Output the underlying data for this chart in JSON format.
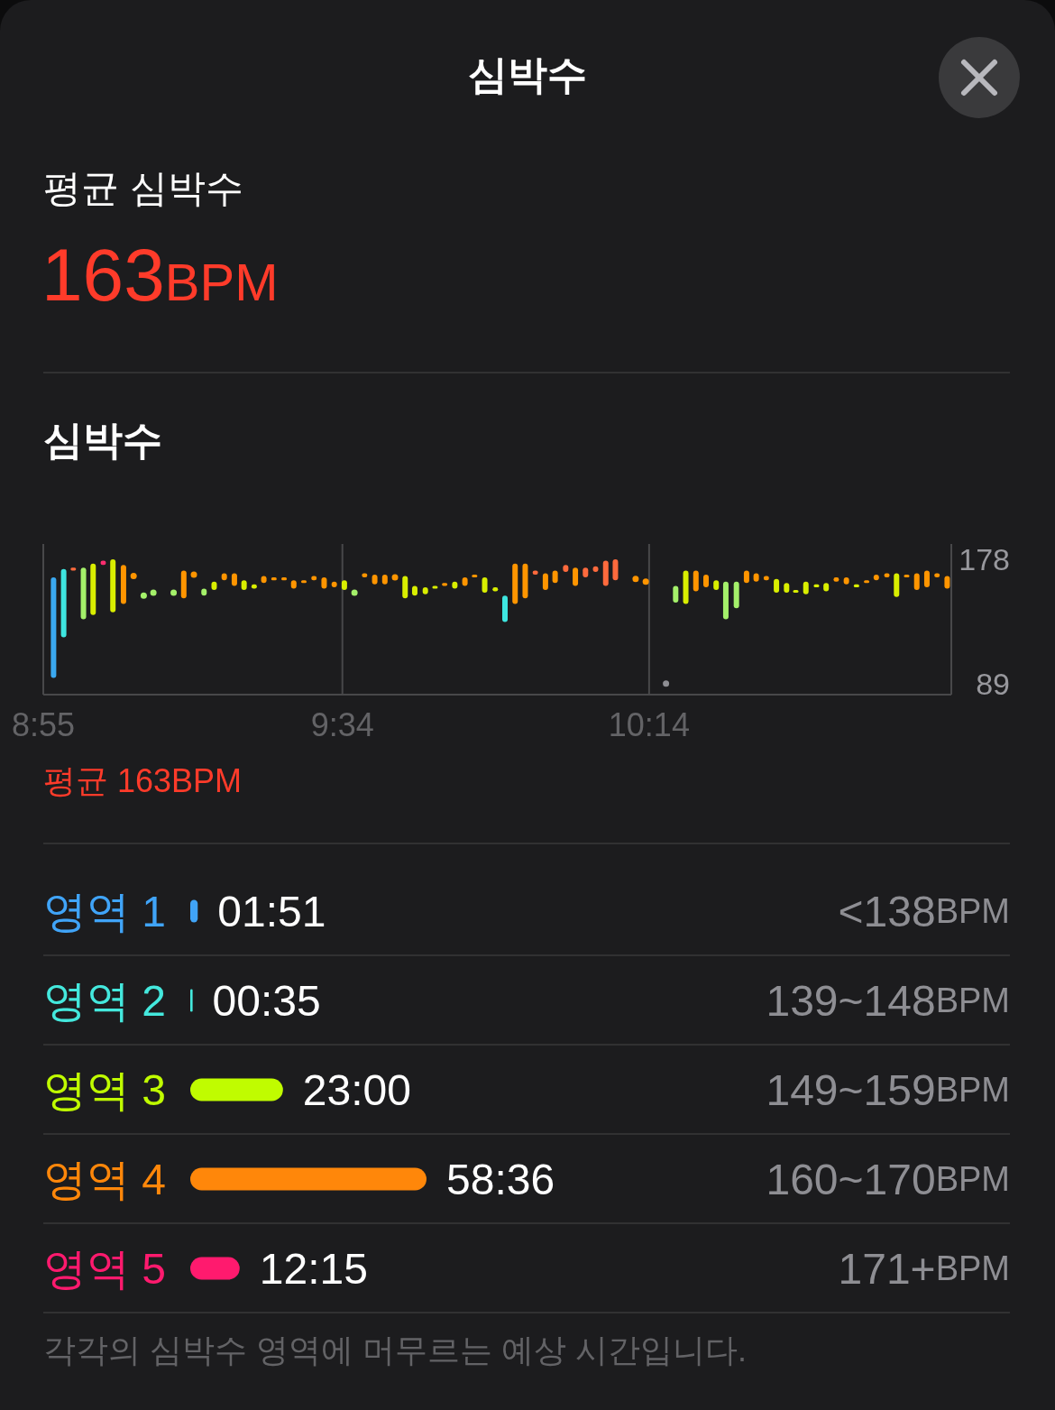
{
  "chart_data": [
    {
      "type": "other",
      "title": "심박수",
      "annotations": [
        "평균 심박수",
        "163BPM"
      ]
    },
    {
      "type": "bar",
      "title": "심박수",
      "annotations": [
        "평균 163BPM"
      ],
      "series": [
        {
          "type": "bar",
          "x": [
            8.939,
            8.961,
            8.982,
            9.004,
            9.025,
            9.047,
            9.068,
            9.091,
            9.222,
            9.266,
            9.288,
            9.31,
            9.332,
            9.353,
            9.375,
            9.396,
            9.418,
            9.44,
            9.461,
            9.483,
            9.505,
            9.527,
            9.549,
            9.571,
            9.615,
            9.637,
            9.659,
            9.703,
            9.724,
            9.747,
            9.768,
            9.789,
            9.811,
            9.833,
            9.854,
            9.876,
            9.899,
            9.92,
            9.942,
            9.964,
            9.986,
            10.008,
            10.029,
            10.052,
            10.073,
            10.095,
            10.117,
            10.139,
            10.16,
            10.291,
            10.313,
            10.335,
            10.357,
            10.379,
            10.4,
            10.423,
            10.445,
            10.466,
            10.488,
            10.51,
            10.532,
            10.552,
            10.574,
            10.597,
            10.618,
            10.64,
            10.662,
            10.684,
            10.706,
            10.727,
            10.75,
            10.771,
            10.793,
            10.815,
            10.837,
            10.859,
            10.881
          ],
          "base": [
            93,
            122,
            170,
            135,
            138,
            174,
            140,
            146,
            150,
            152,
            156,
            163,
            159,
            156,
            157,
            161,
            163,
            163,
            157,
            161,
            163,
            157,
            158,
            156,
            165,
            160,
            160,
            150,
            152,
            153,
            157,
            159,
            157,
            159,
            165,
            154,
            155,
            133,
            146,
            150,
            167,
            156,
            161,
            169,
            159,
            165,
            169,
            159,
            163,
            147,
            146,
            155,
            158,
            156,
            135,
            143,
            161,
            162,
            163,
            154,
            154,
            154,
            153,
            158,
            155,
            162,
            160,
            158,
            161,
            163,
            165,
            151,
            165,
            156,
            158,
            165,
            157
          ],
          "values": [
            72,
            49,
            2,
            37,
            37,
            3,
            38,
            28,
            20,
            5,
            6,
            5,
            9,
            7,
            3,
            5,
            2,
            2,
            6,
            2,
            3,
            8,
            4,
            7,
            3,
            7,
            7,
            16,
            7,
            5,
            2,
            2,
            5,
            6,
            2,
            11,
            3,
            19,
            29,
            25,
            3,
            12,
            9,
            5,
            13,
            7,
            4,
            18,
            15,
            12,
            24,
            15,
            9,
            7,
            27,
            19,
            9,
            6,
            3,
            10,
            7,
            2,
            9,
            2,
            6,
            3,
            5,
            2,
            2,
            4,
            3,
            17,
            2,
            12,
            12,
            3,
            9
          ],
          "colors": [
            "#3aa8f0",
            "#3ee6e0",
            "#ff6a3d",
            "#a4f06a",
            "#d9ee00",
            "#ff2d6f",
            "#d9ee00",
            "#ff9500",
            "#ff9500",
            "#a4f06a",
            "#d9ee00",
            "#ff9500",
            "#ff9500",
            "#d9ee00",
            "#d9ee00",
            "#ff9500",
            "#ff9500",
            "#ff9500",
            "#ff9500",
            "#ff9500",
            "#ff9500",
            "#ff9500",
            "#ff9500",
            "#d9ee00",
            "#ff9500",
            "#ff9500",
            "#ff9500",
            "#d9ee00",
            "#d9ee00",
            "#d9ee00",
            "#d9ee00",
            "#ff9500",
            "#d9ee00",
            "#ff9500",
            "#ff9500",
            "#d9ee00",
            "#d9ee00",
            "#3ee6e0",
            "#ff9500",
            "#ff9500",
            "#ff6a3d",
            "#ff9500",
            "#ff9500",
            "#ff6a3d",
            "#ff9500",
            "#ff6a3d",
            "#ff6a3d",
            "#ff6a3d",
            "#ff6a3d",
            "#a4f06a",
            "#d9ee00",
            "#ff9500",
            "#ff9500",
            "#d9ee00",
            "#a4f06a",
            "#a4f06a",
            "#ff9500",
            "#ff9500",
            "#ff9500",
            "#d9ee00",
            "#d9ee00",
            "#d9ee00",
            "#d9ee00",
            "#d9ee00",
            "#d9ee00",
            "#ff9500",
            "#ff9500",
            "#d9ee00",
            "#ff9500",
            "#ff9500",
            "#ff9500",
            "#d9ee00",
            "#ff9500",
            "#ff9500",
            "#ff9500",
            "#ff9500",
            "#ff9500"
          ]
        },
        {
          "type": "scatter",
          "marker": "circle",
          "x": [
            9.113,
            9.135,
            9.156,
            9.2,
            9.244,
            9.593,
            9.681,
            10.204,
            10.226,
            10.27
          ],
          "values": [
            166,
            152,
            154,
            154,
            167,
            154,
            165,
            164,
            162,
            89
          ],
          "colors": [
            "#ff9500",
            "#a4f06a",
            "#a4f06a",
            "#a4f06a",
            "#ff9500",
            "#a4f06a",
            "#ff9500",
            "#ff9500",
            "#ff9500",
            "#8e8e93"
          ]
        }
      ],
      "xlim": [
        8.9167,
        10.89
      ],
      "xticks": [
        {
          "value": 8.9167,
          "label": "8:55"
        },
        {
          "value": 9.5667,
          "label": "9:34"
        },
        {
          "value": 10.2333,
          "label": "10:14"
        }
      ],
      "ylim": [
        81,
        189
      ],
      "yticks": [
        89,
        178
      ],
      "grid": "x"
    },
    {
      "type": "bar",
      "orientation": "horizontal",
      "categories": [
        "영역 1",
        "영역 2",
        "영역 3",
        "영역 4",
        "영역 5"
      ],
      "values": [
        111,
        35,
        1380,
        3516,
        735
      ],
      "colors": [
        "#40a4f8",
        "#44e8dd",
        "#c0fc00",
        "#ff870a",
        "#ff1a6e"
      ],
      "value_labels": [
        "01:51",
        "00:35",
        "23:00",
        "58:36",
        "12:15"
      ],
      "y2_categories": [
        "<138BPM",
        "139~148BPM",
        "149~159BPM",
        "160~170BPM",
        "171+BPM"
      ],
      "annotations": [
        "각각의 심박수 영역에 머무르는 예상 시간입니다."
      ]
    }
  ]
}
